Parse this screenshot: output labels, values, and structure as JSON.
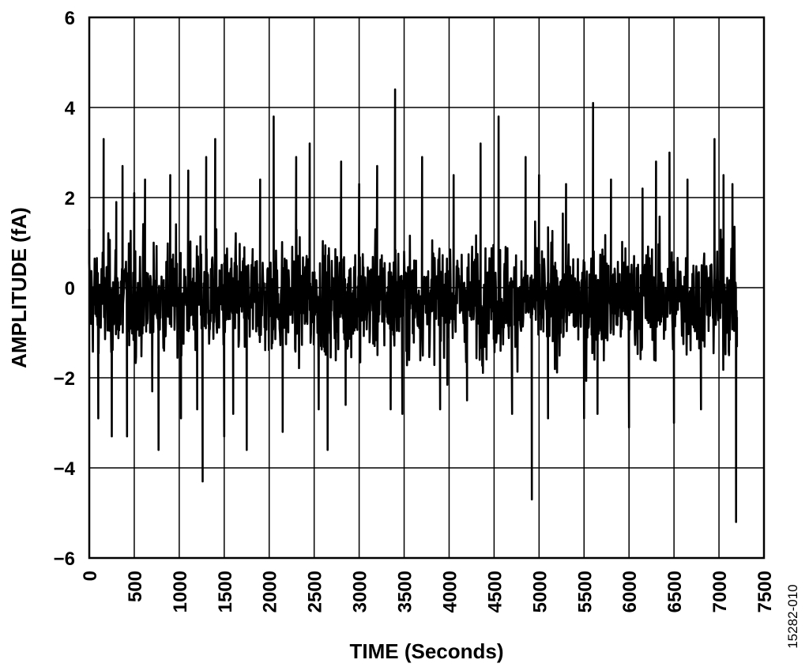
{
  "chart_data": {
    "type": "line",
    "xlabel": "TIME (Seconds)",
    "ylabel": "AMPLITUDE (fA)",
    "xlim": [
      0,
      7500
    ],
    "ylim": [
      -6,
      6
    ],
    "x_ticks": [
      "0",
      "500",
      "1000",
      "1500",
      "2000",
      "2500",
      "3000",
      "3500",
      "4000",
      "4500",
      "5000",
      "5500",
      "6000",
      "6500",
      "7000",
      "7500"
    ],
    "y_ticks": [
      "6",
      "4",
      "2",
      "0",
      "−2",
      "−4",
      "−6"
    ],
    "grid": true,
    "line_color": "#000000",
    "series": [
      {
        "x_range": [
          0,
          7200
        ],
        "points": [
          [
            0,
            1.3
          ],
          [
            100,
            -2.9
          ],
          [
            160,
            3.3
          ],
          [
            250,
            -3.3
          ],
          [
            300,
            1.9
          ],
          [
            370,
            2.7
          ],
          [
            420,
            -3.3
          ],
          [
            500,
            2.1
          ],
          [
            620,
            2.4
          ],
          [
            700,
            -2.3
          ],
          [
            770,
            -3.6
          ],
          [
            900,
            2.5
          ],
          [
            1020,
            -2.9
          ],
          [
            1100,
            2.6
          ],
          [
            1200,
            -2.7
          ],
          [
            1260,
            -4.3
          ],
          [
            1300,
            2.9
          ],
          [
            1400,
            3.3
          ],
          [
            1500,
            -3.3
          ],
          [
            1600,
            -2.8
          ],
          [
            1750,
            -3.6
          ],
          [
            1900,
            2.4
          ],
          [
            2050,
            3.8
          ],
          [
            2150,
            -3.2
          ],
          [
            2300,
            2.9
          ],
          [
            2450,
            3.2
          ],
          [
            2550,
            -2.7
          ],
          [
            2650,
            -3.6
          ],
          [
            2800,
            2.8
          ],
          [
            2850,
            -2.6
          ],
          [
            3000,
            2.3
          ],
          [
            3200,
            2.7
          ],
          [
            3350,
            -2.7
          ],
          [
            3400,
            4.4
          ],
          [
            3480,
            -2.8
          ],
          [
            3700,
            2.9
          ],
          [
            3900,
            -2.7
          ],
          [
            4050,
            2.5
          ],
          [
            4200,
            -2.5
          ],
          [
            4350,
            3.2
          ],
          [
            4550,
            3.8
          ],
          [
            4700,
            -2.8
          ],
          [
            4850,
            2.9
          ],
          [
            4920,
            -4.7
          ],
          [
            5000,
            2.5
          ],
          [
            5100,
            -2.9
          ],
          [
            5300,
            2.3
          ],
          [
            5500,
            -2.9
          ],
          [
            5600,
            4.1
          ],
          [
            5650,
            -2.8
          ],
          [
            5800,
            2.4
          ],
          [
            6000,
            -3.1
          ],
          [
            6150,
            2.2
          ],
          [
            6300,
            2.8
          ],
          [
            6450,
            3.0
          ],
          [
            6500,
            -3.0
          ],
          [
            6650,
            2.4
          ],
          [
            6800,
            -2.7
          ],
          [
            6950,
            3.3
          ],
          [
            7050,
            2.5
          ],
          [
            7150,
            2.3
          ],
          [
            7190,
            -5.2
          ],
          [
            7200,
            -1.3
          ]
        ]
      }
    ]
  },
  "figure_id": "15282-010"
}
